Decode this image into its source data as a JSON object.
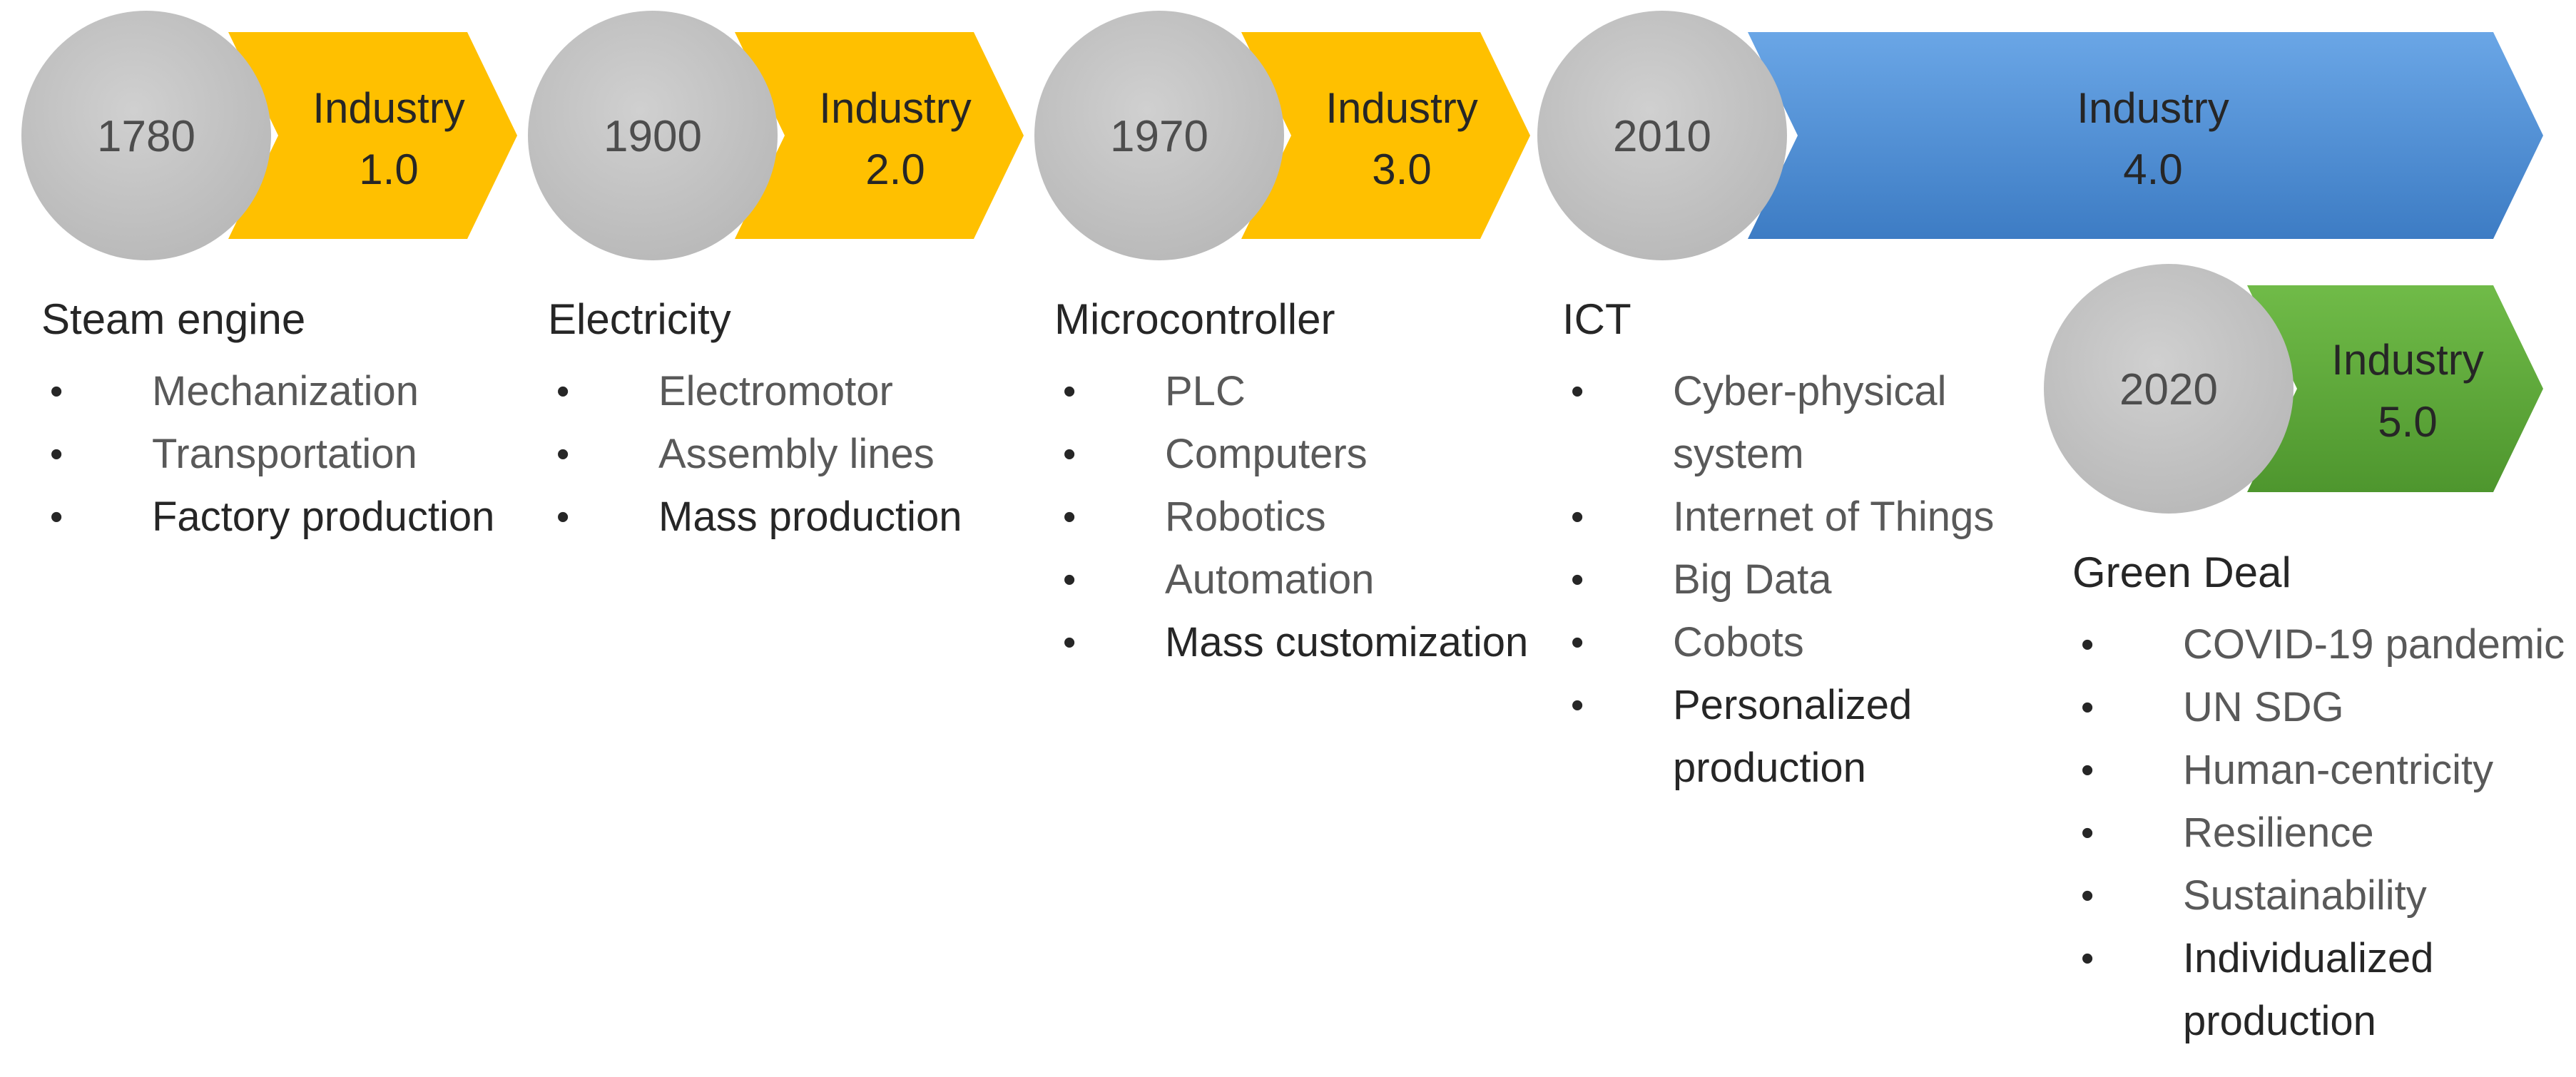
{
  "stages": [
    {
      "id": "industry-1",
      "year": "1780",
      "label_line1": "Industry",
      "label_line2": "1.0",
      "driver": "Steam engine",
      "items": [
        "Mechanization",
        "Transportation",
        "Factory production"
      ]
    },
    {
      "id": "industry-2",
      "year": "1900",
      "label_line1": "Industry",
      "label_line2": "2.0",
      "driver": "Electricity",
      "items": [
        "Electromotor",
        "Assembly lines",
        "Mass production"
      ]
    },
    {
      "id": "industry-3",
      "year": "1970",
      "label_line1": "Industry",
      "label_line2": "3.0",
      "driver": "Microcontroller",
      "items": [
        "PLC",
        "Computers",
        "Robotics",
        "Automation",
        "Mass customization"
      ]
    },
    {
      "id": "industry-4",
      "year": "2010",
      "label_line1": "Industry",
      "label_line2": "4.0",
      "driver": "ICT",
      "items": [
        "Cyber-physical system",
        "Internet of Things",
        "Big Data",
        "Cobots",
        "Personalized production"
      ]
    },
    {
      "id": "industry-5",
      "year": "2020",
      "label_line1": "Industry",
      "label_line2": "5.0",
      "driver": "Green Deal",
      "items": [
        "COVID-19 pandemic",
        "UN SDG",
        "Human-centricity",
        "Resilience",
        "Sustainability",
        "Individualized production"
      ]
    }
  ],
  "colors": {
    "circle": "#c0c0c0",
    "circle_text": "#4d4d4d",
    "arrow_yellow": "#ffc000",
    "arrow_blue": "#4f8ed6",
    "arrow_green": "#5ea83a",
    "label_text": "#262626"
  }
}
